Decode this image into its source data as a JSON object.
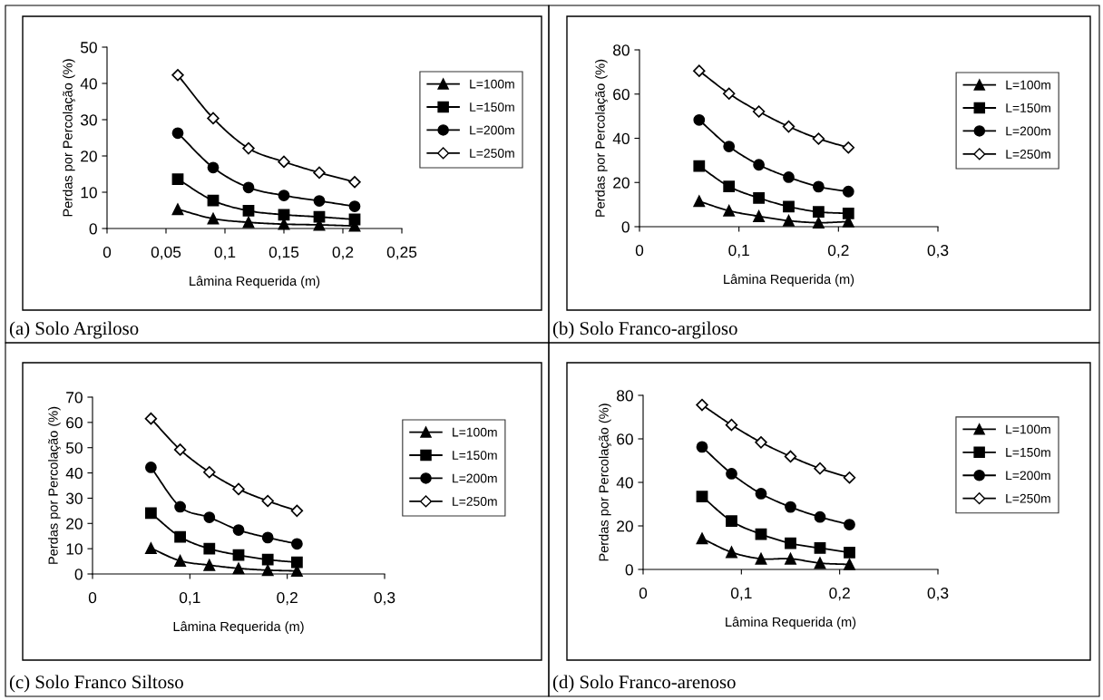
{
  "chart_data": [
    {
      "type": "line",
      "title": "(a) Solo Argiloso",
      "xlabel": "Lâmina Requerida (m)",
      "ylabel": "Perdas por Percolação (%)",
      "x": [
        0.06,
        0.09,
        0.12,
        0.15,
        0.18,
        0.21
      ],
      "xlim": [
        0,
        0.25
      ],
      "xticks": [
        0,
        {
          "value": 0.05,
          "label": "0,05"
        },
        {
          "value": 0.1,
          "label": "0,1"
        },
        {
          "value": 0.15,
          "label": "0,15"
        },
        {
          "value": 0.2,
          "label": "0,2"
        },
        {
          "value": 0.25,
          "label": "0,25"
        }
      ],
      "ylim": [
        0,
        50
      ],
      "yticks": [
        0,
        10,
        20,
        30,
        40,
        50
      ],
      "grid": false,
      "legend": "right",
      "series": [
        {
          "name": "L=100m",
          "color": "#000000",
          "marker": "triangle",
          "values": [
            5.3,
            2.7,
            1.7,
            1.2,
            1.0,
            0.7
          ]
        },
        {
          "name": "L=150m",
          "color": "#000000",
          "marker": "square",
          "values": [
            13.6,
            7.7,
            4.9,
            3.8,
            3.2,
            2.5
          ]
        },
        {
          "name": "L=200m",
          "color": "#000000",
          "marker": "circle",
          "values": [
            26.3,
            16.8,
            11.3,
            9.1,
            7.6,
            6.1
          ]
        },
        {
          "name": "L=250m",
          "color": "#000000",
          "marker": "diamond",
          "values": [
            42.3,
            30.4,
            22.1,
            18.4,
            15.4,
            12.8
          ]
        }
      ]
    },
    {
      "type": "line",
      "title": "(b) Solo Franco-argiloso",
      "xlabel": "Lâmina Requerida (m)",
      "ylabel": "Perdas por Percolação (%)",
      "x": [
        0.06,
        0.09,
        0.12,
        0.15,
        0.18,
        0.21
      ],
      "xlim": [
        0,
        0.3
      ],
      "xticks": [
        0,
        {
          "value": 0.1,
          "label": "0,1"
        },
        {
          "value": 0.2,
          "label": "0,2"
        },
        {
          "value": 0.3,
          "label": "0,3"
        }
      ],
      "ylim": [
        0,
        80
      ],
      "yticks": [
        0,
        20,
        40,
        60,
        80
      ],
      "grid": false,
      "legend": "right",
      "series": [
        {
          "name": "L=100m",
          "color": "#000000",
          "marker": "triangle",
          "values": [
            11.5,
            7.2,
            4.7,
            2.7,
            1.8,
            2.3
          ]
        },
        {
          "name": "L=150m",
          "color": "#000000",
          "marker": "square",
          "values": [
            27.4,
            18.2,
            13.0,
            9.1,
            6.7,
            6.0
          ]
        },
        {
          "name": "L=200m",
          "color": "#000000",
          "marker": "circle",
          "values": [
            48.3,
            36.3,
            28.0,
            22.4,
            18.1,
            15.9
          ]
        },
        {
          "name": "L=250m",
          "color": "#000000",
          "marker": "diamond",
          "values": [
            70.5,
            60.2,
            52.1,
            45.3,
            39.8,
            35.8
          ]
        }
      ]
    },
    {
      "type": "line",
      "title": "(c) Solo Franco Siltoso",
      "xlabel": "Lâmina Requerida (m)",
      "ylabel": "Perdas por Percolação (%)",
      "x": [
        0.06,
        0.09,
        0.12,
        0.15,
        0.18,
        0.21
      ],
      "xlim": [
        0,
        0.3
      ],
      "xticks": [
        0,
        {
          "value": 0.1,
          "label": "0,1"
        },
        {
          "value": 0.2,
          "label": "0,2"
        },
        {
          "value": 0.3,
          "label": "0,3"
        }
      ],
      "ylim": [
        0,
        70
      ],
      "yticks": [
        0,
        10,
        20,
        30,
        40,
        50,
        60,
        70
      ],
      "grid": false,
      "legend": "right",
      "series": [
        {
          "name": "L=100m",
          "color": "#000000",
          "marker": "triangle",
          "values": [
            10.2,
            5.2,
            3.5,
            2.2,
            1.5,
            1.2
          ]
        },
        {
          "name": "L=150m",
          "color": "#000000",
          "marker": "square",
          "values": [
            24.1,
            14.7,
            10.0,
            7.5,
            5.7,
            4.6
          ]
        },
        {
          "name": "L=200m",
          "color": "#000000",
          "marker": "circle",
          "values": [
            42.2,
            26.6,
            22.4,
            17.4,
            14.4,
            11.9
          ]
        },
        {
          "name": "L=250m",
          "color": "#000000",
          "marker": "diamond",
          "values": [
            61.5,
            49.2,
            40.3,
            33.6,
            28.9,
            25.0
          ]
        }
      ]
    },
    {
      "type": "line",
      "title": "(d) Solo Franco-arenoso",
      "xlabel": "Lâmina Requerida (m)",
      "ylabel": "Perdas por Percolação (%)",
      "x": [
        0.06,
        0.09,
        0.12,
        0.15,
        0.18,
        0.21
      ],
      "xlim": [
        0,
        0.3
      ],
      "xticks": [
        0,
        {
          "value": 0.1,
          "label": "0,1"
        },
        {
          "value": 0.2,
          "label": "0,2"
        },
        {
          "value": 0.3,
          "label": "0,3"
        }
      ],
      "ylim": [
        0,
        80
      ],
      "yticks": [
        0,
        20,
        40,
        60,
        80
      ],
      "grid": false,
      "legend": "right",
      "series": [
        {
          "name": "L=100m",
          "color": "#000000",
          "marker": "triangle",
          "values": [
            14.2,
            7.9,
            4.9,
            4.9,
            2.9,
            2.3
          ]
        },
        {
          "name": "L=150m",
          "color": "#000000",
          "marker": "square",
          "values": [
            33.5,
            22.2,
            16.2,
            12.0,
            9.8,
            7.8
          ]
        },
        {
          "name": "L=200m",
          "color": "#000000",
          "marker": "circle",
          "values": [
            56.3,
            44.0,
            34.8,
            28.7,
            24.1,
            20.6
          ]
        },
        {
          "name": "L=250m",
          "color": "#000000",
          "marker": "diamond",
          "values": [
            75.6,
            66.4,
            58.4,
            51.9,
            46.4,
            42.2
          ]
        }
      ]
    }
  ]
}
